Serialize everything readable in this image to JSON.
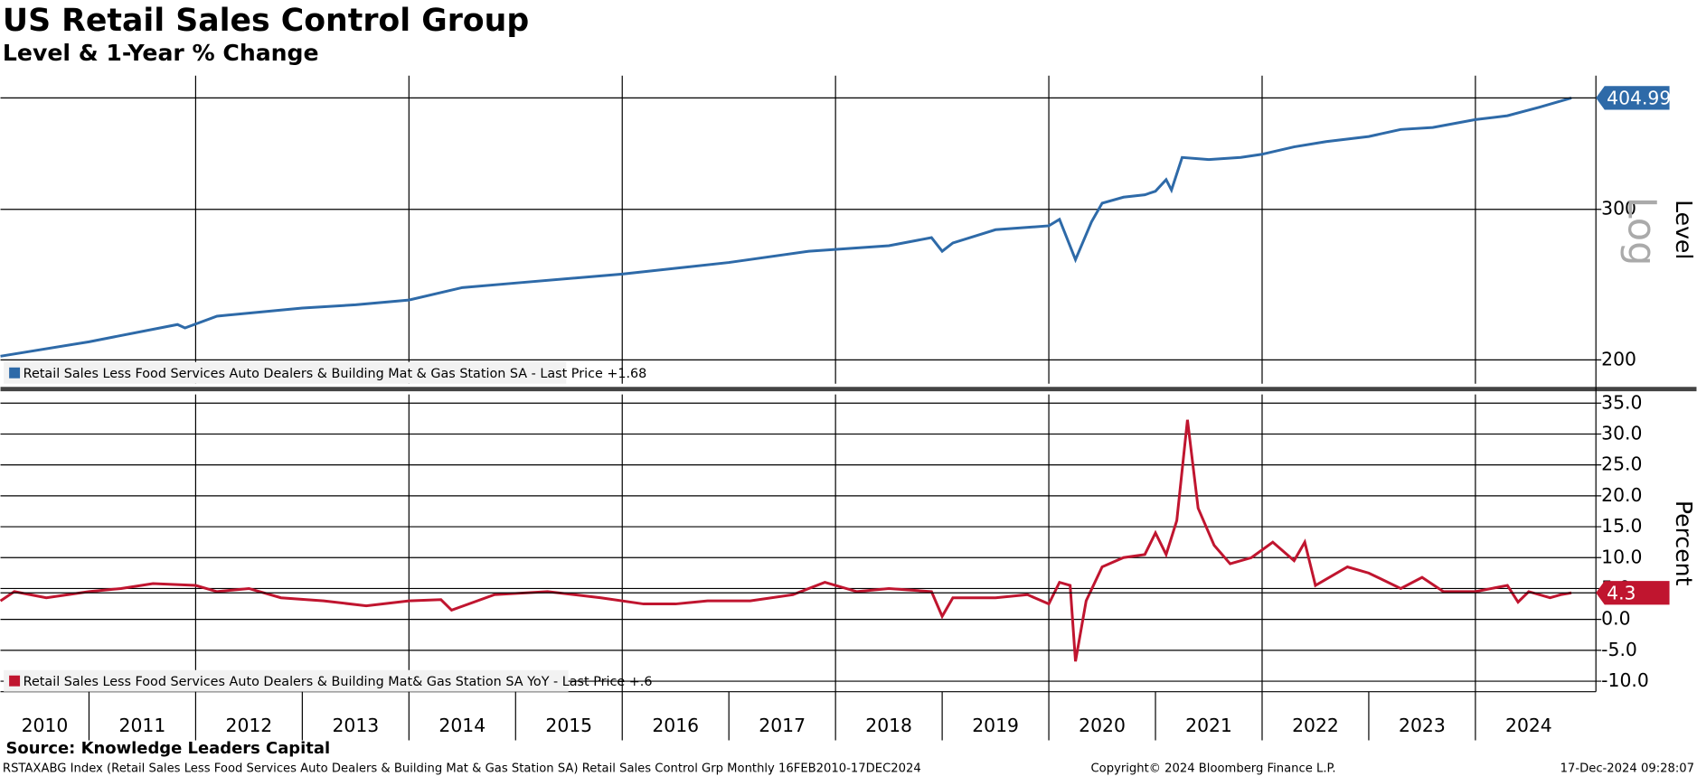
{
  "header": {
    "title": "US Retail Sales Control Group",
    "subtitle": "Level & 1-Year % Change"
  },
  "footer": {
    "source": "Source: Knowledge Leaders Capital",
    "description": "RSTAXABG Index (Retail Sales Less Food Services Auto Dealers & Building Mat & Gas Station SA) Retail Sales Control Grp  Monthly 16FEB2010-17DEC2024",
    "copyright": "Copyright© 2024 Bloomberg Finance L.P.",
    "timestamp": "17-Dec-2024 09:28:07"
  },
  "chart_data": [
    {
      "type": "line",
      "axis_label": "Level",
      "scale_label": "Log",
      "log_scale": true,
      "legend": "Retail Sales Less Food Services Auto Dealers & Building Mat & Gas Station SA - Last Price +1.68",
      "xlim": [
        2010.17,
        2025.13
      ],
      "xgrid": [
        2012,
        2014,
        2016,
        2018,
        2020,
        2022,
        2024
      ],
      "ylim": [
        187.6,
        430
      ],
      "yticks": [
        200,
        300
      ],
      "series": [
        {
          "name": "Level",
          "color": "#2e6aa8",
          "x": [
            2010.17,
            2011.0,
            2011.83,
            2011.9,
            2012.2,
            2013.0,
            2013.5,
            2014.0,
            2014.5,
            2015.0,
            2016.0,
            2017.0,
            2017.75,
            2018.5,
            2018.9,
            2019.0,
            2019.1,
            2019.5,
            2020.0,
            2020.1,
            2020.25,
            2020.4,
            2020.5,
            2020.7,
            2020.9,
            2021.0,
            2021.1,
            2021.15,
            2021.25,
            2021.5,
            2021.8,
            2022.0,
            2022.3,
            2022.6,
            2023.0,
            2023.3,
            2023.6,
            2024.0,
            2024.3,
            2024.6,
            2024.9
          ],
          "values": [
            202,
            210,
            220,
            218,
            225,
            230,
            232,
            235,
            243,
            246,
            252,
            260,
            268,
            272,
            278,
            268,
            274,
            284,
            287,
            292,
            262,
            290,
            305,
            310,
            312,
            315,
            325,
            316,
            345,
            343,
            345,
            348,
            355,
            360,
            365,
            372,
            374,
            382,
            386,
            395,
            404.99
          ]
        }
      ]
    },
    {
      "type": "line",
      "axis_label": "Percent",
      "legend": "Retail Sales Less Food Services Auto Dealers & Building Mat& Gas Station SA YoY - Last Price +.6",
      "xlim": [
        2010.17,
        2025.13
      ],
      "xgrid": [
        2012,
        2014,
        2016,
        2018,
        2020,
        2022,
        2024
      ],
      "xticks": [
        2010,
        2011,
        2012,
        2013,
        2014,
        2015,
        2016,
        2017,
        2018,
        2019,
        2020,
        2021,
        2022,
        2023,
        2024
      ],
      "ylim": [
        -11.7,
        36.4
      ],
      "yticks": [
        {
          "value": 35,
          "label": "35.0"
        },
        {
          "value": 30,
          "label": "30.0"
        },
        {
          "value": 25,
          "label": "25.0"
        },
        {
          "value": 20,
          "label": "20.0"
        },
        {
          "value": 15,
          "label": "15.0"
        },
        {
          "value": 10,
          "label": "10.0"
        },
        {
          "value": 5,
          "label": "5.0"
        },
        {
          "value": 0,
          "label": "0.0"
        },
        {
          "value": -5,
          "label": "-5.0"
        },
        {
          "value": -10,
          "label": "-10.0"
        }
      ],
      "series": [
        {
          "name": "YoY",
          "color": "#c0152f",
          "x": [
            2010.17,
            2010.3,
            2010.6,
            2011.0,
            2011.3,
            2011.6,
            2012.0,
            2012.2,
            2012.5,
            2012.8,
            2013.2,
            2013.6,
            2014.0,
            2014.3,
            2014.4,
            2014.8,
            2015.3,
            2015.8,
            2016.2,
            2016.5,
            2016.8,
            2017.2,
            2017.6,
            2017.9,
            2018.2,
            2018.5,
            2018.9,
            2019.0,
            2019.1,
            2019.5,
            2019.8,
            2020.0,
            2020.1,
            2020.2,
            2020.25,
            2020.35,
            2020.5,
            2020.7,
            2020.9,
            2021.0,
            2021.1,
            2021.2,
            2021.3,
            2021.4,
            2021.55,
            2021.7,
            2021.9,
            2022.1,
            2022.3,
            2022.4,
            2022.5,
            2022.8,
            2023.0,
            2023.3,
            2023.5,
            2023.7,
            2024.0,
            2024.3,
            2024.4,
            2024.5,
            2024.7,
            2024.8,
            2024.9
          ],
          "values": [
            3,
            4.5,
            3.5,
            4.5,
            5,
            5.8,
            5.5,
            4.5,
            5,
            3.5,
            3,
            2.2,
            3,
            3.2,
            1.5,
            4,
            4.5,
            3.5,
            2.5,
            2.5,
            3,
            3,
            4,
            6,
            4.5,
            5,
            4.5,
            0.5,
            3.5,
            3.5,
            4,
            2.5,
            6,
            5.5,
            -6.8,
            3,
            8.5,
            10,
            10.5,
            14,
            10.5,
            16,
            32.3,
            18,
            12,
            9,
            10,
            12.5,
            9.5,
            12.5,
            5.5,
            8.5,
            7.5,
            5,
            6.8,
            4.5,
            4.5,
            5.5,
            2.8,
            4.5,
            3.5,
            4,
            4.3
          ]
        }
      ]
    }
  ]
}
